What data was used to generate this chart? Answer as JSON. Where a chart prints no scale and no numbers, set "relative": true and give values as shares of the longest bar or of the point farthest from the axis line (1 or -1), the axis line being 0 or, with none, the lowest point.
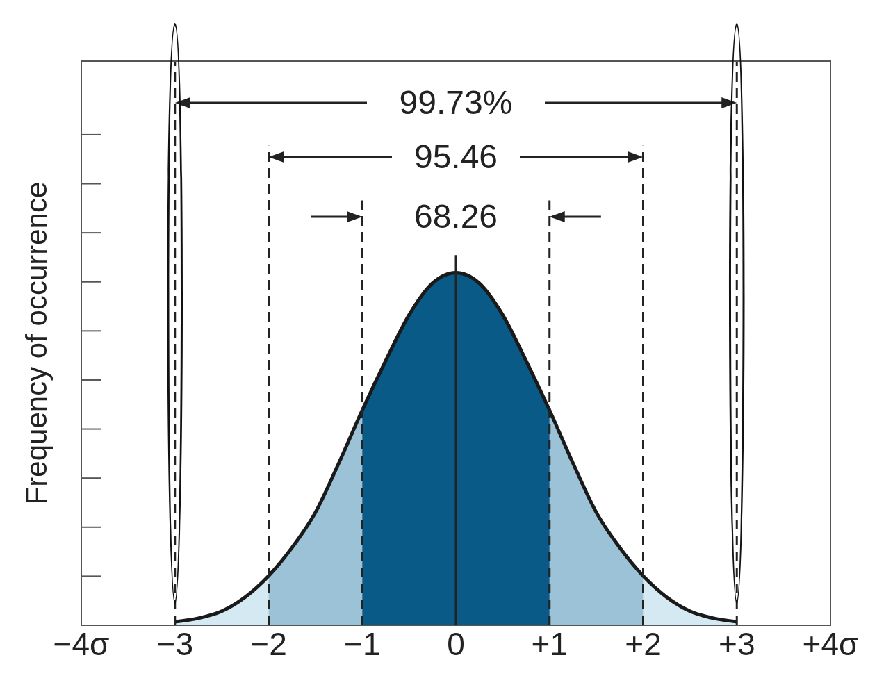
{
  "chart_data": {
    "type": "area",
    "relative": true,
    "ylabel": "Frequency of occurrence",
    "xlim": [
      -4,
      4
    ],
    "xticks": [
      {
        "value": -4,
        "label": "−4σ"
      },
      {
        "value": -3,
        "label": "−3"
      },
      {
        "value": -2,
        "label": "−2"
      },
      {
        "value": -1,
        "label": "−1"
      },
      {
        "value": 0,
        "label": "0"
      },
      {
        "value": 1,
        "label": "+1"
      },
      {
        "value": 2,
        "label": "+2"
      },
      {
        "value": 3,
        "label": "+3"
      },
      {
        "value": 4,
        "label": "+4σ"
      }
    ],
    "series": [
      {
        "type": "area",
        "color": "#d4e9f2",
        "x": [
          -3,
          -2.75,
          -2.5,
          -2.25,
          -2,
          2,
          2.25,
          2.5,
          2.75,
          3
        ],
        "values": [
          0.01,
          0.02,
          0.04,
          0.08,
          0.14,
          0.14,
          0.08,
          0.04,
          0.02,
          0.01
        ]
      },
      {
        "type": "area",
        "color": "#9bc2d6",
        "x": [
          -2,
          -1.75,
          -1.5,
          -1.25,
          -1,
          1,
          1.25,
          1.5,
          1.75,
          2
        ],
        "values": [
          0.14,
          0.22,
          0.32,
          0.46,
          0.61,
          0.61,
          0.46,
          0.32,
          0.22,
          0.14
        ]
      },
      {
        "type": "area",
        "color": "#0a5a87",
        "x": [
          -1,
          -0.75,
          -0.5,
          -0.25,
          0,
          0.25,
          0.5,
          0.75,
          1
        ],
        "values": [
          0.61,
          0.75,
          0.88,
          0.97,
          1,
          0.97,
          0.88,
          0.75,
          0.61
        ]
      },
      {
        "type": "line",
        "color": "#1a1a1a",
        "x": [
          -3,
          -2.75,
          -2.5,
          -2.25,
          -2,
          -1.75,
          -1.5,
          -1.25,
          -1,
          -0.75,
          -0.5,
          -0.25,
          0,
          0.25,
          0.5,
          0.75,
          1,
          1.25,
          1.5,
          1.75,
          2,
          2.25,
          2.5,
          2.75,
          3
        ],
        "values": [
          0.01,
          0.02,
          0.04,
          0.08,
          0.14,
          0.22,
          0.32,
          0.46,
          0.61,
          0.75,
          0.88,
          0.97,
          1,
          0.97,
          0.88,
          0.75,
          0.61,
          0.46,
          0.32,
          0.22,
          0.14,
          0.08,
          0.04,
          0.02,
          0.01
        ]
      }
    ],
    "ref_lines": [
      {
        "axis": "x",
        "value": -3,
        "line_style": "dashed",
        "color": "#222222"
      },
      {
        "axis": "x",
        "value": -2,
        "line_style": "dashed",
        "color": "#222222"
      },
      {
        "axis": "x",
        "value": -1,
        "line_style": "dashed",
        "color": "#222222"
      },
      {
        "axis": "x",
        "value": 0,
        "line_style": "solid",
        "color": "#222222"
      },
      {
        "axis": "x",
        "value": 1,
        "line_style": "dashed",
        "color": "#222222"
      },
      {
        "axis": "x",
        "value": 2,
        "line_style": "dashed",
        "color": "#222222"
      },
      {
        "axis": "x",
        "value": 3,
        "line_style": "dashed",
        "color": "#222222"
      }
    ],
    "annotations": [
      "99.73%",
      "95.46",
      "68.26"
    ]
  }
}
